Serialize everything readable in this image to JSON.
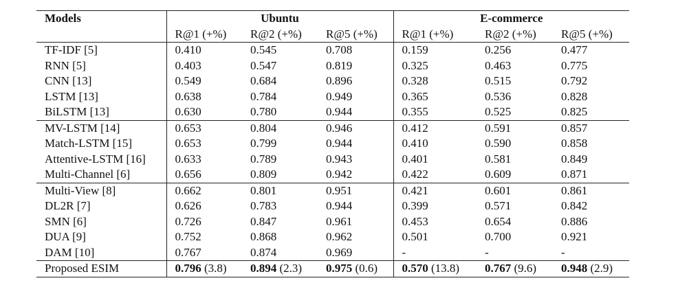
{
  "table": {
    "header": {
      "models": "Models",
      "groups": [
        "Ubuntu",
        "E-commerce"
      ],
      "metrics": [
        "R@1 (+%)",
        "R@2 (+%)",
        "R@5 (+%)",
        "R@1 (+%)",
        "R@2 (+%)",
        "R@5 (+%)"
      ]
    },
    "rows": [
      {
        "model": "TF-IDF [5]",
        "cells": [
          "0.410",
          "0.545",
          "0.708",
          "0.159",
          "0.256",
          "0.477"
        ]
      },
      {
        "model": "RNN [5]",
        "cells": [
          "0.403",
          "0.547",
          "0.819",
          "0.325",
          "0.463",
          "0.775"
        ]
      },
      {
        "model": "CNN [13]",
        "cells": [
          "0.549",
          "0.684",
          "0.896",
          "0.328",
          "0.515",
          "0.792"
        ]
      },
      {
        "model": "LSTM [13]",
        "cells": [
          "0.638",
          "0.784",
          "0.949",
          "0.365",
          "0.536",
          "0.828"
        ]
      },
      {
        "model": "BiLSTM [13]",
        "cells": [
          "0.630",
          "0.780",
          "0.944",
          "0.355",
          "0.525",
          "0.825"
        ]
      },
      {
        "model": "MV-LSTM [14]",
        "cells": [
          "0.653",
          "0.804",
          "0.946",
          "0.412",
          "0.591",
          "0.857"
        ]
      },
      {
        "model": "Match-LSTM [15]",
        "cells": [
          "0.653",
          "0.799",
          "0.944",
          "0.410",
          "0.590",
          "0.858"
        ]
      },
      {
        "model": "Attentive-LSTM [16]",
        "cells": [
          "0.633",
          "0.789",
          "0.943",
          "0.401",
          "0.581",
          "0.849"
        ]
      },
      {
        "model": "Multi-Channel [6]",
        "cells": [
          "0.656",
          "0.809",
          "0.942",
          "0.422",
          "0.609",
          "0.871"
        ]
      },
      {
        "model": "Multi-View [8]",
        "cells": [
          "0.662",
          "0.801",
          "0.951",
          "0.421",
          "0.601",
          "0.861"
        ]
      },
      {
        "model": "DL2R [7]",
        "cells": [
          "0.626",
          "0.783",
          "0.944",
          "0.399",
          "0.571",
          "0.842"
        ]
      },
      {
        "model": "SMN [6]",
        "cells": [
          "0.726",
          "0.847",
          "0.961",
          "0.453",
          "0.654",
          "0.886"
        ]
      },
      {
        "model": "DUA [9]",
        "cells": [
          "0.752",
          "0.868",
          "0.962",
          "0.501",
          "0.700",
          "0.921"
        ]
      },
      {
        "model": "DAM [10]",
        "cells": [
          "0.767",
          "0.874",
          "0.969",
          "-",
          "-",
          "-"
        ]
      }
    ],
    "proposed": {
      "model": "Proposed ESIM",
      "cells": [
        {
          "value": "0.796",
          "gain": "(3.8)"
        },
        {
          "value": "0.894",
          "gain": "(2.3)"
        },
        {
          "value": "0.975",
          "gain": "(0.6)"
        },
        {
          "value": "0.570",
          "gain": "(13.8)"
        },
        {
          "value": "0.767",
          "gain": "(9.6)"
        },
        {
          "value": "0.948",
          "gain": "(2.9)"
        }
      ]
    }
  }
}
